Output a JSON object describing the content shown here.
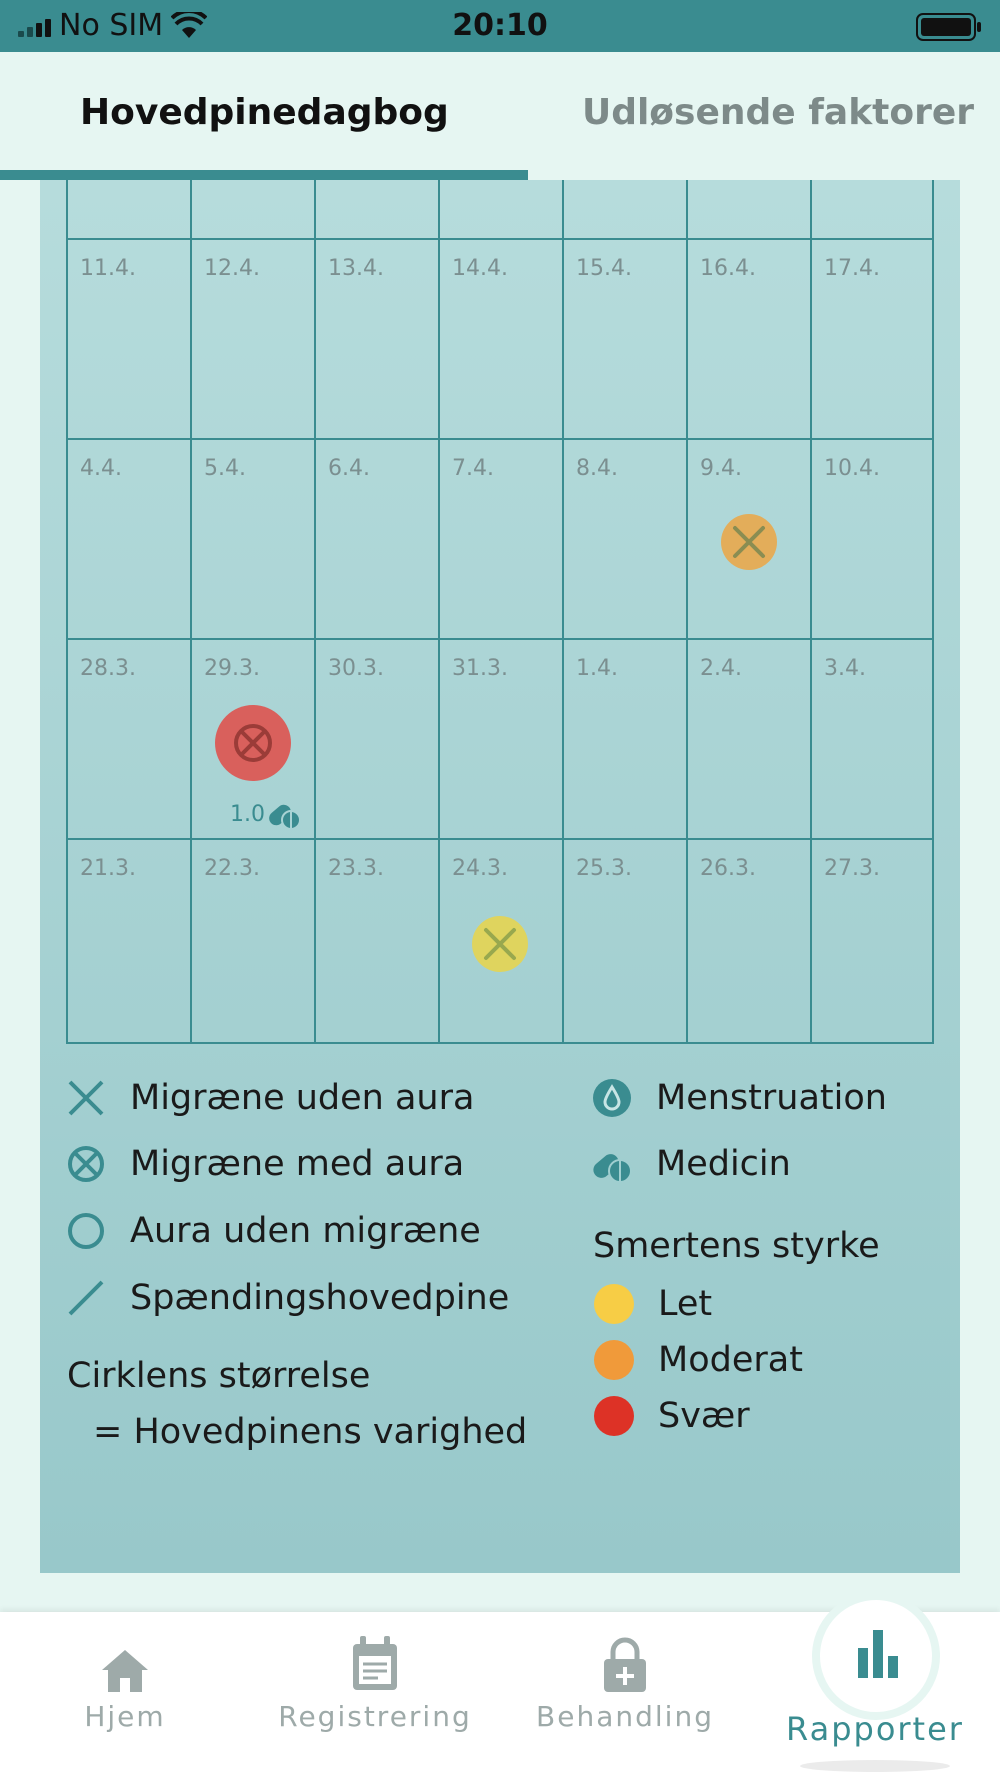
{
  "status_bar": {
    "carrier": "No SIM",
    "time": "20:10"
  },
  "tabs": [
    {
      "label": "Hovedpinedagbog",
      "active": true
    },
    {
      "label": "Udløsende faktorer",
      "active": false
    }
  ],
  "calendar": {
    "weeks": [
      [
        "11.4.",
        "12.4.",
        "13.4.",
        "14.4.",
        "15.4.",
        "16.4.",
        "17.4."
      ],
      [
        "4.4.",
        "5.4.",
        "6.4.",
        "7.4.",
        "8.4.",
        "9.4.",
        "10.4."
      ],
      [
        "28.3.",
        "29.3.",
        "30.3.",
        "31.3.",
        "1.4.",
        "2.4.",
        "3.4."
      ],
      [
        "21.3.",
        "22.3.",
        "23.3.",
        "24.3.",
        "25.3.",
        "26.3.",
        "27.3."
      ]
    ],
    "entries": [
      {
        "date": "9.4.",
        "type": "Migræne uden aura",
        "severity": "Moderat",
        "color": "#e3ad5a"
      },
      {
        "date": "29.3.",
        "type": "Migræne med aura",
        "severity": "Svær",
        "color": "#d9605c",
        "medicine_amount": "1.0"
      },
      {
        "date": "24.3.",
        "type": "Migræne uden aura",
        "severity": "Let",
        "color": "#dfd45e"
      }
    ]
  },
  "legend": {
    "types": [
      {
        "icon": "x-icon",
        "label": "Migræne uden aura"
      },
      {
        "icon": "x-circle-icon",
        "label": "Migræne med aura"
      },
      {
        "icon": "circle-icon",
        "label": "Aura uden migræne"
      },
      {
        "icon": "slash-icon",
        "label": "Spændingshovedpine"
      }
    ],
    "extras": [
      {
        "icon": "menstruation-icon",
        "label": "Menstruation"
      },
      {
        "icon": "medicine-icon",
        "label": "Medicin"
      }
    ],
    "circle_size_title": "Cirklens størrelse",
    "circle_size_desc": "= Hovedpinens varighed",
    "severity_title": "Smertens styrke",
    "severity": [
      {
        "label": "Let",
        "color": "#f7cd45"
      },
      {
        "label": "Moderat",
        "color": "#f09a3a"
      },
      {
        "label": "Svær",
        "color": "#dd3226"
      }
    ]
  },
  "nav": [
    {
      "label": "Hjem",
      "icon": "home-icon"
    },
    {
      "label": "Registrering",
      "icon": "calendar-icon"
    },
    {
      "label": "Behandling",
      "icon": "lock-plus-icon"
    },
    {
      "label": "Rapporter",
      "icon": "bar-chart-icon",
      "active": true
    }
  ],
  "colors": {
    "accent": "#3a8c90",
    "panel": "#a8d3d4"
  }
}
